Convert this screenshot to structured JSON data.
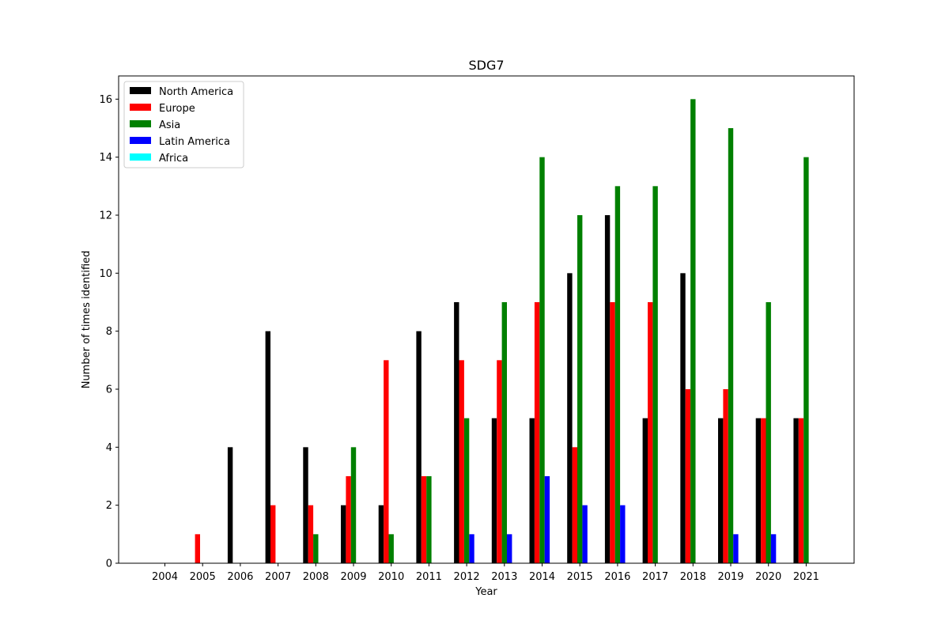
{
  "chart_data": {
    "type": "bar",
    "title": "SDG7",
    "xlabel": "Year",
    "ylabel": "Number of times identified",
    "categories": [
      "2004",
      "2005",
      "2006",
      "2007",
      "2008",
      "2009",
      "2010",
      "2011",
      "2012",
      "2013",
      "2014",
      "2015",
      "2016",
      "2017",
      "2018",
      "2019",
      "2020",
      "2021"
    ],
    "ylim": [
      0,
      16.8
    ],
    "yticks": [
      "0",
      "2",
      "4",
      "6",
      "8",
      "10",
      "12",
      "14",
      "16"
    ],
    "grid": false,
    "legend_position": "top-left",
    "series": [
      {
        "name": "North America",
        "color": "#000000",
        "values": [
          0,
          0,
          4,
          8,
          4,
          2,
          2,
          8,
          9,
          5,
          5,
          10,
          12,
          5,
          10,
          5,
          5,
          5
        ]
      },
      {
        "name": "Europe",
        "color": "#ff0000",
        "values": [
          0,
          1,
          0,
          2,
          2,
          3,
          7,
          3,
          7,
          7,
          9,
          4,
          9,
          9,
          6,
          6,
          5,
          5
        ]
      },
      {
        "name": "Asia",
        "color": "#008000",
        "values": [
          0,
          0,
          0,
          0,
          1,
          4,
          1,
          3,
          5,
          9,
          14,
          12,
          13,
          13,
          16,
          15,
          9,
          14
        ]
      },
      {
        "name": "Latin America",
        "color": "#0000ff",
        "values": [
          0,
          0,
          0,
          0,
          0,
          0,
          0,
          0,
          1,
          1,
          3,
          2,
          2,
          0,
          0,
          1,
          1,
          0
        ]
      },
      {
        "name": "Africa",
        "color": "#00ffff",
        "values": [
          0,
          0,
          0,
          0,
          0,
          0,
          0,
          0,
          0,
          0,
          0,
          0,
          0,
          0,
          0,
          0,
          0,
          0
        ]
      }
    ]
  }
}
